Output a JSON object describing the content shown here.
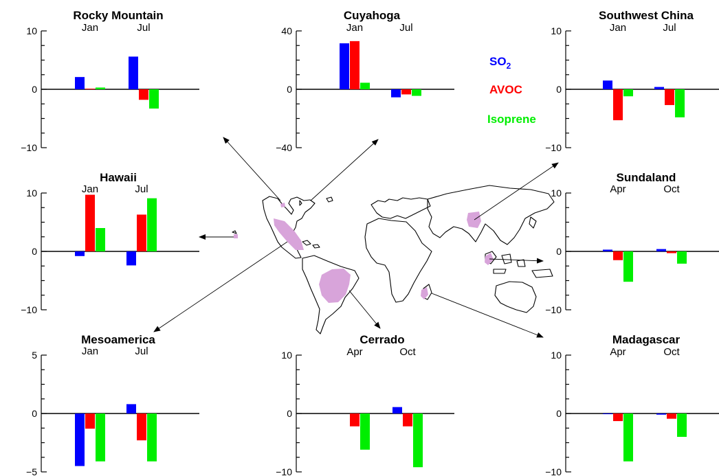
{
  "colors": {
    "SO2": "#0000ff",
    "AVOC": "#ff0000",
    "Isoprene": "#00ee00",
    "region_fill": "#d8a4da"
  },
  "legend": {
    "so2_main": "SO",
    "so2_sub": "2",
    "avoc": "AVOC",
    "isoprene": "Isoprene"
  },
  "map": {
    "icon": "world-map-icon"
  },
  "chart_data": [
    {
      "type": "bar",
      "title": "Rocky Mountain",
      "categories": [
        "Jan",
        "Jul"
      ],
      "ylim": [
        -10,
        10
      ],
      "yticks": [
        -10,
        0,
        10
      ],
      "series": [
        {
          "name": "SO2",
          "values": [
            2.1,
            5.6
          ]
        },
        {
          "name": "AVOC",
          "values": [
            0.1,
            -1.8
          ]
        },
        {
          "name": "Isoprene",
          "values": [
            0.3,
            -3.3
          ]
        }
      ]
    },
    {
      "type": "bar",
      "title": "Cuyahoga",
      "categories": [
        "Jan",
        "Jul"
      ],
      "ylim": [
        -40,
        40
      ],
      "yticks": [
        -40,
        0,
        40
      ],
      "series": [
        {
          "name": "SO2",
          "values": [
            31.5,
            -5.5
          ]
        },
        {
          "name": "AVOC",
          "values": [
            33.0,
            -3.5
          ]
        },
        {
          "name": "Isoprene",
          "values": [
            4.5,
            -4.5
          ]
        }
      ]
    },
    {
      "type": "bar",
      "title": "Southwest China",
      "categories": [
        "Jan",
        "Jul"
      ],
      "ylim": [
        -10,
        10
      ],
      "yticks": [
        -10,
        0,
        10
      ],
      "series": [
        {
          "name": "SO2",
          "values": [
            1.5,
            0.4
          ]
        },
        {
          "name": "AVOC",
          "values": [
            -5.3,
            -2.7
          ]
        },
        {
          "name": "Isoprene",
          "values": [
            -1.2,
            -4.8
          ]
        }
      ]
    },
    {
      "type": "bar",
      "title": "Hawaii",
      "categories": [
        "Jan",
        "Jul"
      ],
      "ylim": [
        -10,
        10
      ],
      "yticks": [
        -10,
        0,
        10
      ],
      "series": [
        {
          "name": "SO2",
          "values": [
            -0.8,
            -2.4
          ]
        },
        {
          "name": "AVOC",
          "values": [
            9.7,
            6.3
          ]
        },
        {
          "name": "Isoprene",
          "values": [
            4.0,
            9.1
          ]
        }
      ]
    },
    {
      "type": "bar",
      "title": "Sundaland",
      "categories": [
        "Apr",
        "Oct"
      ],
      "ylim": [
        -10,
        10
      ],
      "yticks": [
        -10,
        0,
        10
      ],
      "series": [
        {
          "name": "SO2",
          "values": [
            0.3,
            0.4
          ]
        },
        {
          "name": "AVOC",
          "values": [
            -1.5,
            -0.3
          ]
        },
        {
          "name": "Isoprene",
          "values": [
            -5.2,
            -2.1
          ]
        }
      ]
    },
    {
      "type": "bar",
      "title": "Mesoamerica",
      "categories": [
        "Jan",
        "Jul"
      ],
      "ylim": [
        -5,
        5
      ],
      "yticks": [
        -5,
        0,
        5
      ],
      "series": [
        {
          "name": "SO2",
          "values": [
            -4.5,
            0.8
          ]
        },
        {
          "name": "AVOC",
          "values": [
            -1.3,
            -2.3
          ]
        },
        {
          "name": "Isoprene",
          "values": [
            -4.1,
            -4.1
          ]
        }
      ]
    },
    {
      "type": "bar",
      "title": "Cerrado",
      "categories": [
        "Apr",
        "Oct"
      ],
      "ylim": [
        -10,
        10
      ],
      "yticks": [
        -10,
        0,
        10
      ],
      "series": [
        {
          "name": "SO2",
          "values": [
            0.0,
            1.1
          ]
        },
        {
          "name": "AVOC",
          "values": [
            -2.2,
            -2.2
          ]
        },
        {
          "name": "Isoprene",
          "values": [
            -6.2,
            -9.2
          ]
        }
      ]
    },
    {
      "type": "bar",
      "title": "Madagascar",
      "categories": [
        "Apr",
        "Oct"
      ],
      "ylim": [
        -10,
        10
      ],
      "yticks": [
        -10,
        0,
        10
      ],
      "series": [
        {
          "name": "SO2",
          "values": [
            -0.1,
            -0.2
          ]
        },
        {
          "name": "AVOC",
          "values": [
            -1.3,
            -0.9
          ]
        },
        {
          "name": "Isoprene",
          "values": [
            -8.2,
            -4.0
          ]
        }
      ]
    }
  ]
}
